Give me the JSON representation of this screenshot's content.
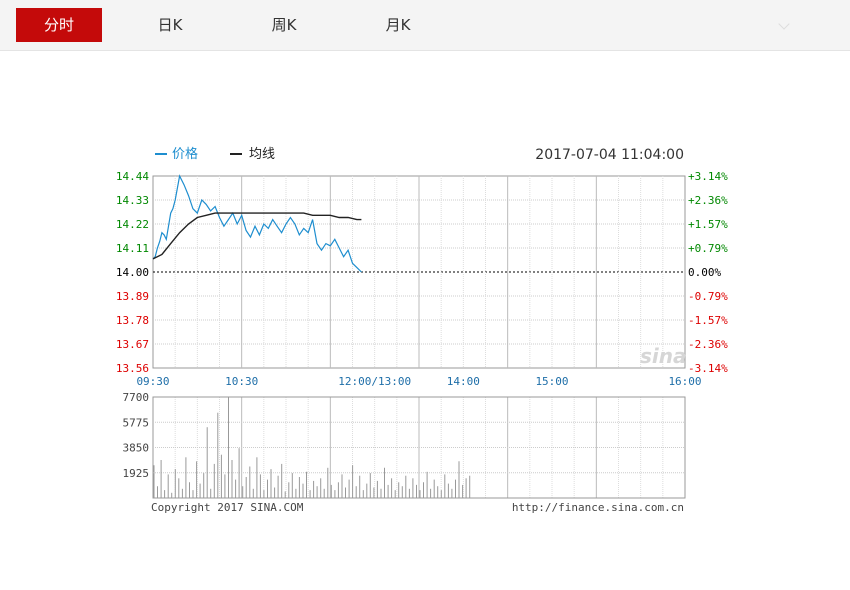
{
  "tabs": [
    {
      "label": "分时",
      "active": true
    },
    {
      "label": "日K",
      "active": false
    },
    {
      "label": "周K",
      "active": false
    },
    {
      "label": "月K",
      "active": false
    }
  ],
  "colors": {
    "accent": "#c40a0a",
    "price": "#1e8ecf",
    "avg": "#222222",
    "up": "#008800",
    "down": "#dd0000",
    "volume": "#999999",
    "axis_time": "#1e6ea8"
  },
  "watermark": "sina",
  "chart_data": {
    "type": "line",
    "legend": [
      {
        "name": "价格",
        "color": "#1e8ecf"
      },
      {
        "name": "均线",
        "color": "#222222"
      }
    ],
    "datetime": "2017-07-04 11:04:00",
    "x_ticks": [
      "09:30",
      "10:30",
      "12:00/13:00",
      "14:00",
      "15:00",
      "16:00"
    ],
    "y_ticks": [
      "14.44",
      "14.33",
      "14.22",
      "14.11",
      "14.00",
      "13.89",
      "13.78",
      "13.67",
      "13.56"
    ],
    "y_right_ticks": [
      "+3.14%",
      "+2.36%",
      "+1.57%",
      "+0.79%",
      "0.00%",
      "-0.79%",
      "-1.57%",
      "-2.36%",
      "-3.14%"
    ],
    "ylim": [
      13.56,
      14.44
    ],
    "base_price": 14.0,
    "series": [
      {
        "name": "价格",
        "x": [
          0,
          1,
          2,
          3,
          4,
          5,
          6,
          7,
          8,
          9,
          10,
          12,
          14,
          16,
          18,
          20,
          22,
          24,
          26,
          28,
          30,
          32,
          34,
          36,
          38,
          40,
          42,
          44,
          46,
          48,
          50,
          52,
          54,
          56,
          58,
          60,
          62,
          64,
          66,
          68,
          70,
          72,
          74,
          76,
          78,
          80,
          82,
          84,
          86,
          88,
          90,
          92,
          94
        ],
        "values": [
          14.06,
          14.07,
          14.11,
          14.14,
          14.18,
          14.17,
          14.15,
          14.21,
          14.27,
          14.29,
          14.33,
          14.44,
          14.4,
          14.35,
          14.29,
          14.27,
          14.33,
          14.31,
          14.28,
          14.3,
          14.25,
          14.21,
          14.24,
          14.27,
          14.22,
          14.26,
          14.19,
          14.16,
          14.21,
          14.17,
          14.22,
          14.2,
          14.24,
          14.21,
          14.18,
          14.22,
          14.25,
          14.22,
          14.17,
          14.2,
          14.18,
          14.24,
          14.13,
          14.1,
          14.13,
          14.12,
          14.15,
          14.11,
          14.07,
          14.1,
          14.04,
          14.02,
          14.0
        ]
      },
      {
        "name": "均线",
        "x": [
          0,
          4,
          8,
          12,
          16,
          20,
          24,
          28,
          32,
          36,
          40,
          44,
          48,
          52,
          56,
          60,
          64,
          68,
          72,
          76,
          80,
          84,
          88,
          92,
          94
        ],
        "values": [
          14.06,
          14.08,
          14.13,
          14.18,
          14.22,
          14.25,
          14.26,
          14.27,
          14.27,
          14.27,
          14.27,
          14.27,
          14.27,
          14.27,
          14.27,
          14.27,
          14.27,
          14.27,
          14.26,
          14.26,
          14.26,
          14.25,
          14.25,
          14.24,
          14.24
        ]
      }
    ],
    "volume": {
      "y_ticks": [
        "7700",
        "5775",
        "3850",
        "1925"
      ],
      "ylim": [
        0,
        7700
      ],
      "values": [
        2500,
        900,
        2900,
        600,
        1800,
        400,
        2200,
        1500,
        700,
        3100,
        1200,
        600,
        2800,
        1100,
        1900,
        5400,
        700,
        2600,
        6500,
        3300,
        1800,
        7700,
        2900,
        1400,
        3800,
        900,
        1600,
        2400,
        700,
        3100,
        1800,
        600,
        1400,
        2200,
        800,
        1700,
        2600,
        500,
        1200,
        1900,
        700,
        1600,
        1100,
        2000,
        600,
        1300,
        900,
        1500,
        700,
        2300,
        1000,
        600,
        1200,
        1800,
        800,
        1400,
        2500,
        900,
        1700,
        600,
        1100,
        1900,
        800,
        1300,
        700,
        2300,
        1000,
        1500,
        600,
        1200,
        900,
        1700,
        700,
        1500,
        1000,
        600,
        1200,
        2000,
        700,
        1400,
        900,
        600,
        1800,
        1100,
        700,
        1400,
        2800,
        1000,
        1500,
        1700
      ]
    },
    "footer_left": "Copyright 2017 SINA.COM",
    "footer_right": "http://finance.sina.com.cn"
  }
}
